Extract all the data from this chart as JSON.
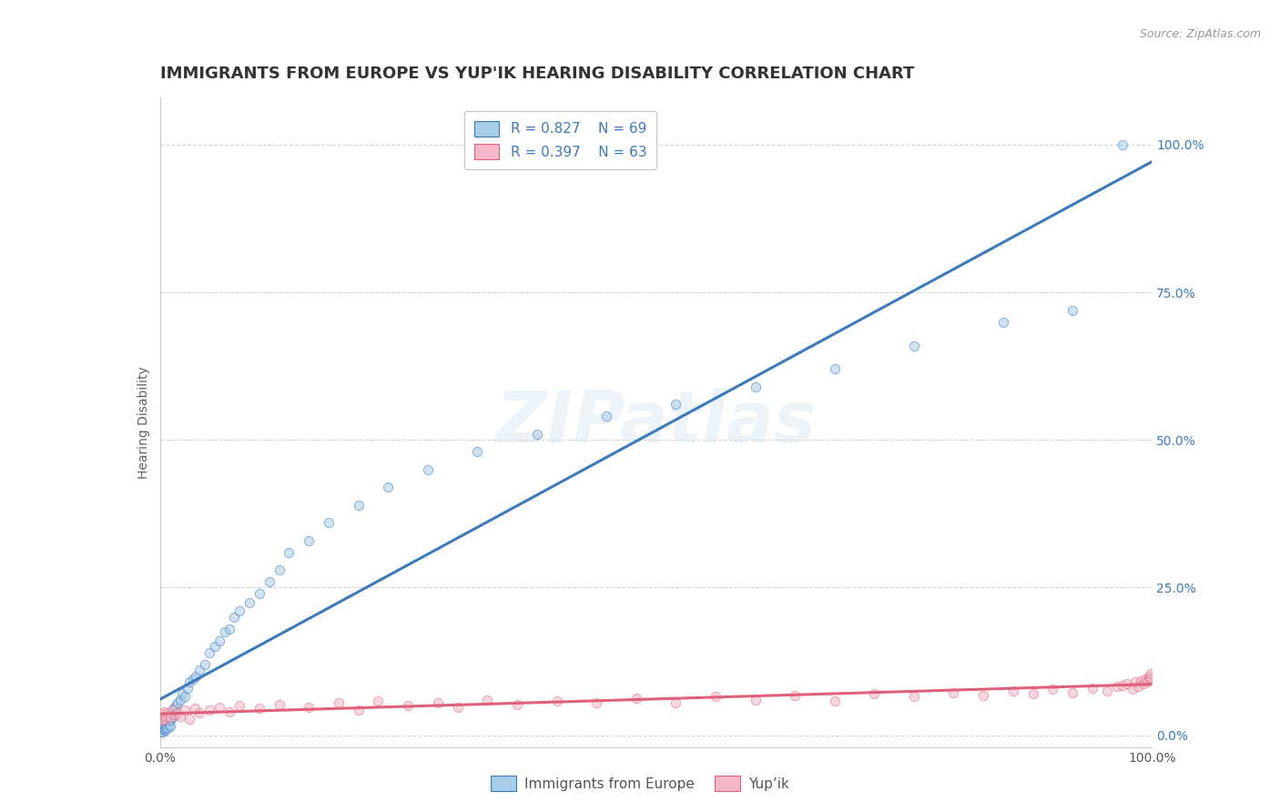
{
  "title": "IMMIGRANTS FROM EUROPE VS YUP'IK HEARING DISABILITY CORRELATION CHART",
  "source": "Source: ZipAtlas.com",
  "ylabel": "Hearing Disability",
  "watermark": "ZIPatlas",
  "legend_r1": "R = 0.827",
  "legend_n1": "N = 69",
  "legend_r2": "R = 0.397",
  "legend_n2": "N = 63",
  "series1_label": "Immigrants from Europe",
  "series2_label": "Yup’ik",
  "blue_scatter_color": "#a8cde8",
  "blue_line_color": "#3a7abf",
  "pink_scatter_color": "#f4b8c8",
  "pink_line_color": "#e0607a",
  "background_color": "#ffffff",
  "grid_color": "#d0d0d0",
  "title_color": "#333333",
  "tick_color_y": "#3a7abf",
  "tick_color_x": "#555555",
  "series1_x": [
    0.001,
    0.001,
    0.001,
    0.001,
    0.002,
    0.002,
    0.002,
    0.003,
    0.003,
    0.003,
    0.003,
    0.004,
    0.004,
    0.005,
    0.005,
    0.005,
    0.006,
    0.006,
    0.007,
    0.007,
    0.008,
    0.008,
    0.009,
    0.009,
    0.01,
    0.01,
    0.011,
    0.012,
    0.013,
    0.014,
    0.015,
    0.016,
    0.018,
    0.02,
    0.022,
    0.025,
    0.028,
    0.03,
    0.033,
    0.036,
    0.04,
    0.045,
    0.05,
    0.055,
    0.06,
    0.065,
    0.07,
    0.075,
    0.08,
    0.09,
    0.1,
    0.11,
    0.12,
    0.13,
    0.15,
    0.17,
    0.2,
    0.23,
    0.27,
    0.32,
    0.38,
    0.45,
    0.52,
    0.6,
    0.68,
    0.76,
    0.85,
    0.92,
    0.97
  ],
  "series1_y": [
    0.005,
    0.01,
    0.015,
    0.02,
    0.008,
    0.012,
    0.018,
    0.006,
    0.014,
    0.022,
    0.028,
    0.01,
    0.016,
    0.008,
    0.012,
    0.02,
    0.014,
    0.025,
    0.018,
    0.03,
    0.012,
    0.022,
    0.018,
    0.028,
    0.015,
    0.025,
    0.035,
    0.04,
    0.03,
    0.045,
    0.035,
    0.05,
    0.055,
    0.06,
    0.07,
    0.065,
    0.08,
    0.09,
    0.095,
    0.1,
    0.11,
    0.12,
    0.14,
    0.15,
    0.16,
    0.175,
    0.18,
    0.2,
    0.21,
    0.225,
    0.24,
    0.26,
    0.28,
    0.31,
    0.33,
    0.36,
    0.39,
    0.42,
    0.45,
    0.48,
    0.51,
    0.54,
    0.56,
    0.59,
    0.62,
    0.66,
    0.7,
    0.72,
    1.0
  ],
  "series2_x": [
    0.001,
    0.002,
    0.003,
    0.004,
    0.005,
    0.006,
    0.008,
    0.01,
    0.012,
    0.015,
    0.018,
    0.02,
    0.025,
    0.03,
    0.035,
    0.04,
    0.05,
    0.06,
    0.07,
    0.08,
    0.1,
    0.12,
    0.15,
    0.18,
    0.2,
    0.22,
    0.25,
    0.28,
    0.3,
    0.33,
    0.36,
    0.4,
    0.44,
    0.48,
    0.52,
    0.56,
    0.6,
    0.64,
    0.68,
    0.72,
    0.76,
    0.8,
    0.83,
    0.86,
    0.88,
    0.9,
    0.92,
    0.94,
    0.955,
    0.965,
    0.97,
    0.975,
    0.98,
    0.983,
    0.986,
    0.989,
    0.991,
    0.993,
    0.995,
    0.997,
    0.998,
    0.999,
    0.999
  ],
  "series2_y": [
    0.03,
    0.025,
    0.035,
    0.04,
    0.028,
    0.032,
    0.038,
    0.03,
    0.042,
    0.035,
    0.038,
    0.032,
    0.042,
    0.028,
    0.045,
    0.038,
    0.042,
    0.048,
    0.04,
    0.05,
    0.045,
    0.052,
    0.048,
    0.055,
    0.042,
    0.058,
    0.05,
    0.055,
    0.048,
    0.06,
    0.052,
    0.058,
    0.055,
    0.062,
    0.055,
    0.065,
    0.06,
    0.068,
    0.058,
    0.07,
    0.065,
    0.072,
    0.068,
    0.075,
    0.07,
    0.078,
    0.072,
    0.08,
    0.075,
    0.082,
    0.085,
    0.088,
    0.078,
    0.09,
    0.082,
    0.092,
    0.088,
    0.095,
    0.09,
    0.098,
    0.1,
    0.095,
    0.105
  ],
  "xlim": [
    0.0,
    1.0
  ],
  "ylim": [
    -0.02,
    1.08
  ],
  "ytick_positions": [
    0.0,
    0.25,
    0.5,
    0.75,
    1.0
  ],
  "ytick_labels": [
    "0.0%",
    "25.0%",
    "50.0%",
    "75.0%",
    "100.0%"
  ],
  "xtick_positions": [
    0.0,
    1.0
  ],
  "xtick_labels": [
    "0.0%",
    "100.0%"
  ],
  "title_fontsize": 13,
  "axis_label_fontsize": 10,
  "tick_fontsize": 10,
  "marker_size": 55,
  "marker_alpha": 0.55,
  "line_width": 2.2
}
